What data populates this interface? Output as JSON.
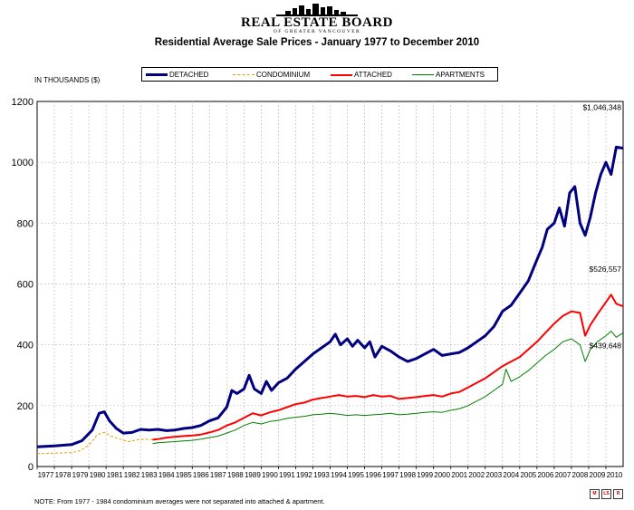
{
  "logo": {
    "name": "REAL ESTATE BOARD",
    "sub": "OF GREATER VANCOUVER"
  },
  "chart_data": {
    "type": "line",
    "title": "Residential Average Sale Prices  -  January 1977 to December 2010",
    "ylabel": "IN THOUSANDS ($)",
    "xlabel": "",
    "ylim": [
      0,
      1200
    ],
    "yticks": [
      0,
      200,
      400,
      600,
      800,
      1000,
      1200
    ],
    "xlim": [
      1977.0,
      2011.0
    ],
    "xtick_labels": [
      "1977",
      "1978",
      "1979",
      "1980",
      "1981",
      "1982",
      "1983",
      "1984",
      "1985",
      "1986",
      "1987",
      "1988",
      "1989",
      "1990",
      "1991",
      "1992",
      "1993",
      "1994",
      "1995",
      "1996",
      "1997",
      "1998",
      "1999",
      "2000",
      "2001",
      "2002",
      "2003",
      "2004",
      "2005",
      "2006",
      "2007",
      "2008",
      "2009",
      "2010"
    ],
    "grid": true,
    "legend_position": "top",
    "series": [
      {
        "name": "DETACHED",
        "color": "#000080",
        "style": "solid-thick",
        "points": [
          [
            1977.0,
            65
          ],
          [
            1978.0,
            68
          ],
          [
            1979.0,
            72
          ],
          [
            1979.6,
            85
          ],
          [
            1980.2,
            120
          ],
          [
            1980.6,
            175
          ],
          [
            1980.9,
            180
          ],
          [
            1981.2,
            150
          ],
          [
            1981.6,
            125
          ],
          [
            1982.0,
            110
          ],
          [
            1982.5,
            112
          ],
          [
            1983.0,
            122
          ],
          [
            1983.5,
            120
          ],
          [
            1984.0,
            122
          ],
          [
            1984.5,
            118
          ],
          [
            1985.0,
            120
          ],
          [
            1985.5,
            125
          ],
          [
            1986.0,
            128
          ],
          [
            1986.5,
            135
          ],
          [
            1987.0,
            150
          ],
          [
            1987.5,
            160
          ],
          [
            1988.0,
            195
          ],
          [
            1988.3,
            250
          ],
          [
            1988.6,
            240
          ],
          [
            1989.0,
            255
          ],
          [
            1989.3,
            300
          ],
          [
            1989.6,
            255
          ],
          [
            1990.0,
            240
          ],
          [
            1990.3,
            280
          ],
          [
            1990.6,
            250
          ],
          [
            1991.0,
            275
          ],
          [
            1991.5,
            290
          ],
          [
            1992.0,
            320
          ],
          [
            1992.5,
            345
          ],
          [
            1993.0,
            370
          ],
          [
            1993.5,
            390
          ],
          [
            1994.0,
            410
          ],
          [
            1994.3,
            435
          ],
          [
            1994.6,
            400
          ],
          [
            1995.0,
            420
          ],
          [
            1995.3,
            395
          ],
          [
            1995.6,
            415
          ],
          [
            1996.0,
            390
          ],
          [
            1996.3,
            410
          ],
          [
            1996.6,
            360
          ],
          [
            1997.0,
            395
          ],
          [
            1997.5,
            380
          ],
          [
            1998.0,
            360
          ],
          [
            1998.5,
            345
          ],
          [
            1999.0,
            355
          ],
          [
            1999.5,
            370
          ],
          [
            2000.0,
            385
          ],
          [
            2000.5,
            365
          ],
          [
            2001.0,
            370
          ],
          [
            2001.5,
            375
          ],
          [
            2002.0,
            390
          ],
          [
            2002.5,
            410
          ],
          [
            2003.0,
            430
          ],
          [
            2003.5,
            460
          ],
          [
            2004.0,
            510
          ],
          [
            2004.5,
            530
          ],
          [
            2005.0,
            570
          ],
          [
            2005.5,
            610
          ],
          [
            2006.0,
            680
          ],
          [
            2006.3,
            720
          ],
          [
            2006.6,
            780
          ],
          [
            2007.0,
            800
          ],
          [
            2007.3,
            850
          ],
          [
            2007.6,
            790
          ],
          [
            2007.9,
            900
          ],
          [
            2008.2,
            920
          ],
          [
            2008.5,
            800
          ],
          [
            2008.8,
            760
          ],
          [
            2009.1,
            820
          ],
          [
            2009.4,
            900
          ],
          [
            2009.7,
            960
          ],
          [
            2010.0,
            1000
          ],
          [
            2010.3,
            960
          ],
          [
            2010.6,
            1050
          ],
          [
            2011.0,
            1046.348
          ]
        ]
      },
      {
        "name": "CONDOMINIUM",
        "color": "#e8a000",
        "style": "dashed",
        "points": [
          [
            1977.0,
            42
          ],
          [
            1978.0,
            44
          ],
          [
            1979.0,
            46
          ],
          [
            1979.5,
            52
          ],
          [
            1980.0,
            70
          ],
          [
            1980.5,
            105
          ],
          [
            1980.9,
            112
          ],
          [
            1981.3,
            100
          ],
          [
            1981.8,
            90
          ],
          [
            1982.3,
            82
          ],
          [
            1982.8,
            88
          ],
          [
            1983.3,
            90
          ],
          [
            1983.7,
            88
          ]
        ]
      },
      {
        "name": "ATTACHED",
        "color": "#ff0000",
        "style": "solid",
        "points": [
          [
            1983.7,
            88
          ],
          [
            1984.0,
            90
          ],
          [
            1984.5,
            95
          ],
          [
            1985.0,
            98
          ],
          [
            1985.5,
            100
          ],
          [
            1986.0,
            102
          ],
          [
            1986.5,
            105
          ],
          [
            1987.0,
            112
          ],
          [
            1987.5,
            120
          ],
          [
            1988.0,
            135
          ],
          [
            1988.5,
            145
          ],
          [
            1989.0,
            160
          ],
          [
            1989.5,
            175
          ],
          [
            1990.0,
            168
          ],
          [
            1990.5,
            178
          ],
          [
            1991.0,
            185
          ],
          [
            1991.5,
            195
          ],
          [
            1992.0,
            205
          ],
          [
            1992.5,
            210
          ],
          [
            1993.0,
            220
          ],
          [
            1993.5,
            225
          ],
          [
            1994.0,
            230
          ],
          [
            1994.5,
            235
          ],
          [
            1995.0,
            230
          ],
          [
            1995.5,
            232
          ],
          [
            1996.0,
            228
          ],
          [
            1996.5,
            235
          ],
          [
            1997.0,
            230
          ],
          [
            1997.5,
            232
          ],
          [
            1998.0,
            222
          ],
          [
            1998.5,
            225
          ],
          [
            1999.0,
            228
          ],
          [
            1999.5,
            232
          ],
          [
            2000.0,
            235
          ],
          [
            2000.5,
            230
          ],
          [
            2001.0,
            240
          ],
          [
            2001.5,
            245
          ],
          [
            2002.0,
            260
          ],
          [
            2002.5,
            275
          ],
          [
            2003.0,
            290
          ],
          [
            2003.5,
            310
          ],
          [
            2004.0,
            330
          ],
          [
            2004.5,
            345
          ],
          [
            2005.0,
            360
          ],
          [
            2005.5,
            385
          ],
          [
            2006.0,
            410
          ],
          [
            2006.5,
            440
          ],
          [
            2007.0,
            470
          ],
          [
            2007.5,
            495
          ],
          [
            2008.0,
            510
          ],
          [
            2008.5,
            505
          ],
          [
            2008.8,
            430
          ],
          [
            2009.1,
            465
          ],
          [
            2009.5,
            500
          ],
          [
            2010.0,
            540
          ],
          [
            2010.3,
            565
          ],
          [
            2010.6,
            535
          ],
          [
            2011.0,
            526.557
          ]
        ]
      },
      {
        "name": "APARTMENTS",
        "color": "#008000",
        "style": "solid-thin",
        "points": [
          [
            1983.7,
            75
          ],
          [
            1984.0,
            78
          ],
          [
            1984.5,
            80
          ],
          [
            1985.0,
            82
          ],
          [
            1985.5,
            84
          ],
          [
            1986.0,
            86
          ],
          [
            1986.5,
            90
          ],
          [
            1987.0,
            95
          ],
          [
            1987.5,
            100
          ],
          [
            1988.0,
            110
          ],
          [
            1988.5,
            120
          ],
          [
            1989.0,
            135
          ],
          [
            1989.5,
            145
          ],
          [
            1990.0,
            140
          ],
          [
            1990.5,
            148
          ],
          [
            1991.0,
            152
          ],
          [
            1991.5,
            158
          ],
          [
            1992.0,
            162
          ],
          [
            1992.5,
            165
          ],
          [
            1993.0,
            170
          ],
          [
            1993.5,
            172
          ],
          [
            1994.0,
            175
          ],
          [
            1994.5,
            172
          ],
          [
            1995.0,
            168
          ],
          [
            1995.5,
            170
          ],
          [
            1996.0,
            168
          ],
          [
            1996.5,
            170
          ],
          [
            1997.0,
            172
          ],
          [
            1997.5,
            175
          ],
          [
            1998.0,
            170
          ],
          [
            1998.5,
            172
          ],
          [
            1999.0,
            175
          ],
          [
            1999.5,
            178
          ],
          [
            2000.0,
            180
          ],
          [
            2000.5,
            178
          ],
          [
            2001.0,
            185
          ],
          [
            2001.5,
            190
          ],
          [
            2002.0,
            200
          ],
          [
            2002.5,
            215
          ],
          [
            2003.0,
            230
          ],
          [
            2003.5,
            250
          ],
          [
            2004.0,
            270
          ],
          [
            2004.2,
            320
          ],
          [
            2004.5,
            280
          ],
          [
            2005.0,
            295
          ],
          [
            2005.5,
            315
          ],
          [
            2006.0,
            340
          ],
          [
            2006.5,
            365
          ],
          [
            2007.0,
            385
          ],
          [
            2007.5,
            410
          ],
          [
            2008.0,
            420
          ],
          [
            2008.5,
            400
          ],
          [
            2008.8,
            345
          ],
          [
            2009.1,
            385
          ],
          [
            2009.5,
            410
          ],
          [
            2010.0,
            430
          ],
          [
            2010.3,
            445
          ],
          [
            2010.6,
            425
          ],
          [
            2011.0,
            439.648
          ]
        ]
      }
    ],
    "annotations": [
      {
        "text": "$1,046,348",
        "series": "DETACHED"
      },
      {
        "text": "$526,557",
        "series": "ATTACHED"
      },
      {
        "text": "$439,648",
        "series": "APARTMENTS"
      }
    ]
  },
  "note": "NOTE:  From 1977 - 1984 condominium averages were not separated into attached & apartment.",
  "badges": [
    "M",
    "LS",
    "R"
  ]
}
